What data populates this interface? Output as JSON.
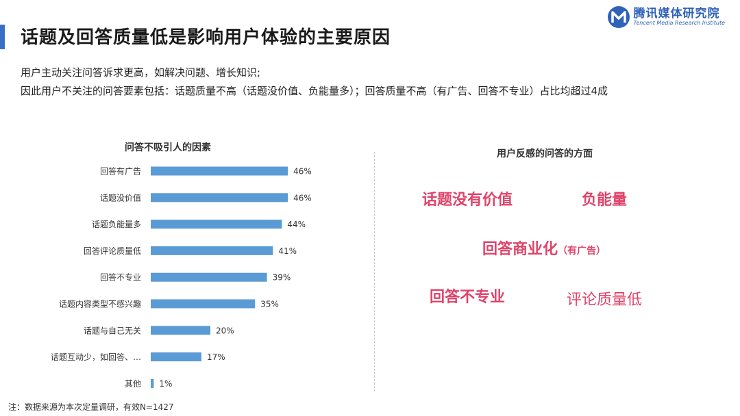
{
  "header": {
    "title": "话题及回答质量低是影响用户体验的主要原因",
    "logo_cn": "腾讯媒体研究院",
    "logo_en": "Tencent Media Research Institute"
  },
  "subtitle_lines": [
    "用户主动关注问答诉求更高，如解决问题、增长知识;",
    "因此用户不关注的问答要素包括：话题质量不高（话题没价值、负能量多）；回答质量不高（有广告、回答不专业）占比均超过4成"
  ],
  "left_panel": {
    "title": "问答不吸引人的因素"
  },
  "right_panel": {
    "title": "用户反感的问答的方面",
    "keywords": {
      "k1": "话题没有价值",
      "k2": "负能量",
      "k3": "回答商业化",
      "k3_note": "（有广告）",
      "k4": "回答不专业",
      "k5": "评论质量低"
    }
  },
  "footnote": "注：数据来源为本次定量调研，有效N=1427",
  "colors": {
    "bar": "#5b9bd5",
    "accent": "#3a6fc7",
    "keyword": "#e0436a"
  },
  "chart_data": {
    "type": "bar",
    "orientation": "horizontal",
    "title": "问答不吸引人的因素",
    "categories": [
      "回答有广告",
      "话题没价值",
      "话题负能量多",
      "回答评论质量低",
      "回答不专业",
      "话题内容类型不感兴趣",
      "话题与自己无关",
      "话题互动少，如回答、…",
      "其他"
    ],
    "values": [
      46,
      46,
      44,
      41,
      39,
      35,
      20,
      17,
      1
    ],
    "value_labels": [
      "46%",
      "46%",
      "44%",
      "41%",
      "39%",
      "35%",
      "20%",
      "17%",
      "1%"
    ],
    "unit": "%",
    "xlim": [
      0,
      100
    ],
    "grid": false
  }
}
